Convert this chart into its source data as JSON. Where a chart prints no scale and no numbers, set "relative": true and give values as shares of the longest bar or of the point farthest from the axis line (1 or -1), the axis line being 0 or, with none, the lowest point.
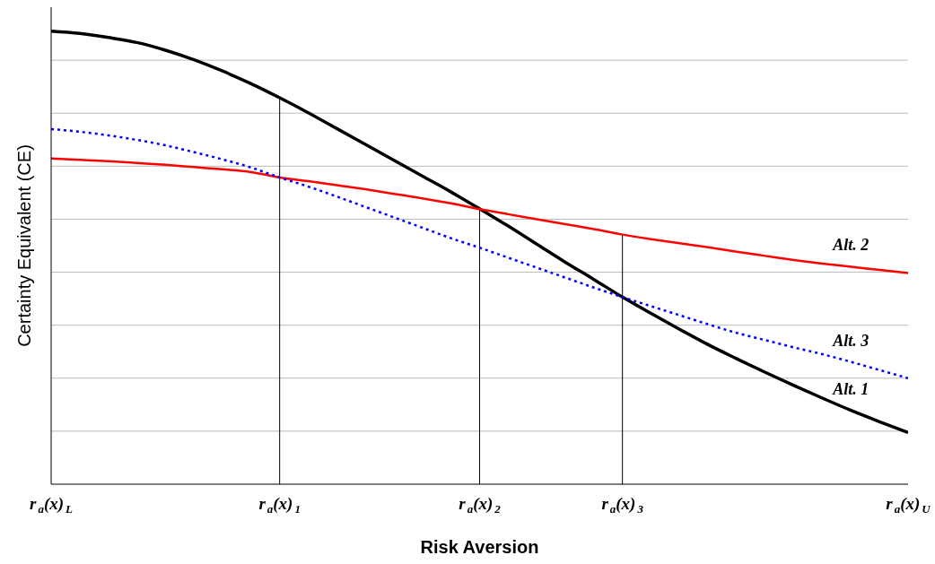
{
  "chart_data": {
    "type": "line",
    "relative": true,
    "xlabel": "Risk Aversion",
    "ylabel": "Certainty Equivalent (CE)",
    "categories": [
      "r$_{a}$(x)$_{L}$",
      null,
      null,
      null,
      null,
      null,
      null,
      null,
      "r$_{a}$(x)$_{1}$",
      null,
      null,
      null,
      null,
      null,
      null,
      "r$_{a}$(x)$_{2}$",
      null,
      null,
      null,
      null,
      "r$_{a}$(x)$_{3}$",
      null,
      null,
      null,
      null,
      null,
      null,
      null,
      null,
      null,
      "r$_{a}$(x)$_{U}$"
    ],
    "series": [
      {
        "name": "Alt. 1",
        "color": "#000000",
        "line_style": "solid",
        "values": [
          1,
          0.995,
          0.986,
          0.975,
          0.958,
          0.937,
          0.912,
          0.884,
          0.853,
          0.82,
          0.785,
          0.75,
          0.715,
          0.68,
          0.645,
          0.608,
          0.57,
          0.53,
          0.49,
          0.452,
          0.413,
          0.377,
          0.342,
          0.308,
          0.277,
          0.247,
          0.218,
          0.19,
          0.163,
          0.138,
          0.114
        ]
      },
      {
        "name": "Alt. 2",
        "color": "#ff0000",
        "line_style": "solid",
        "values": [
          0.719,
          0.716,
          0.713,
          0.709,
          0.705,
          0.7,
          0.695,
          0.689,
          0.677,
          0.669,
          0.66,
          0.651,
          0.641,
          0.631,
          0.62,
          0.607,
          0.596,
          0.585,
          0.574,
          0.563,
          0.551,
          0.541,
          0.532,
          0.523,
          0.513,
          0.504,
          0.495,
          0.487,
          0.48,
          0.473,
          0.466
        ]
      },
      {
        "name": "Alt. 3",
        "color": "#0000ff",
        "line_style": "dotted",
        "values": [
          0.784,
          0.778,
          0.77,
          0.76,
          0.748,
          0.733,
          0.717,
          0.699,
          0.677,
          0.657,
          0.635,
          0.612,
          0.589,
          0.566,
          0.543,
          0.522,
          0.5,
          0.478,
          0.456,
          0.434,
          0.413,
          0.393,
          0.373,
          0.353,
          0.334,
          0.318,
          0.302,
          0.287,
          0.27,
          0.252,
          0.234
        ]
      }
    ],
    "ref_lines": [
      {
        "axis": "x",
        "value": "r$_{a}$(x)$_{1}$"
      },
      {
        "axis": "x",
        "value": "r$_{a}$(x)$_{2}$"
      },
      {
        "axis": "x",
        "value": "r$_{a}$(x)$_{3}$"
      }
    ],
    "grid": "y",
    "marker": "none"
  }
}
